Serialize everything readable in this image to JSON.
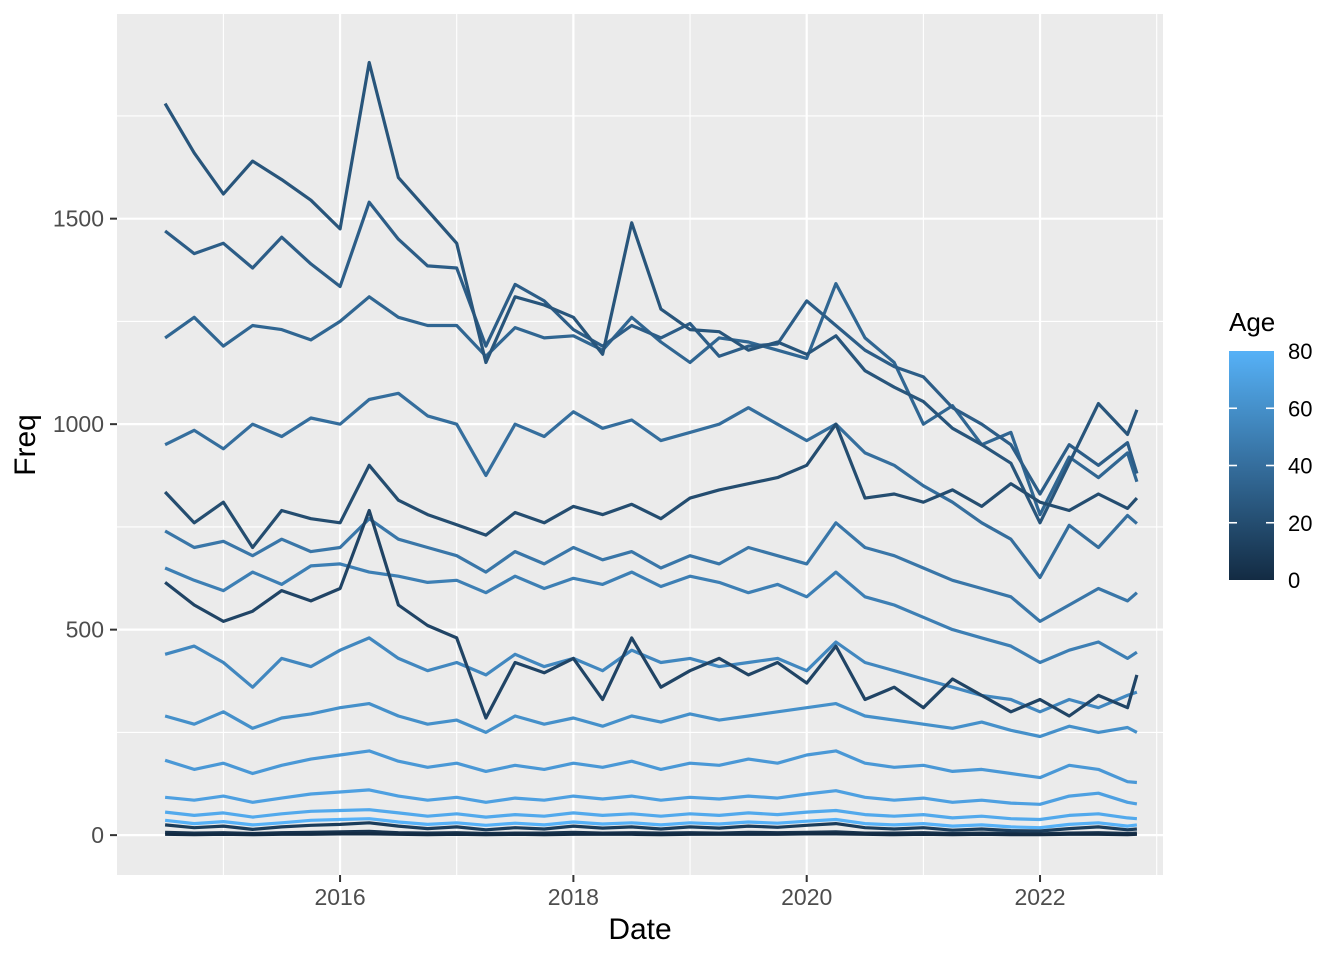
{
  "figure": {
    "background": "#FFFFFF",
    "panel_background": "#EBEBEB",
    "grid_color": "#FFFFFF",
    "axis_text_color": "#4D4D4D",
    "tick_mark_color": "#333333"
  },
  "chart_data": {
    "type": "line",
    "title": "",
    "xlabel": "Date",
    "ylabel": "Freq",
    "grid": true,
    "xlim": [
      2014.088,
      2023.054
    ],
    "ylim": [
      -97,
      1998
    ],
    "x_ticks": [
      2016,
      2018,
      2020,
      2022
    ],
    "x_minor_ticks": [
      2015,
      2017,
      2019,
      2021,
      2023
    ],
    "y_ticks": [
      0,
      500,
      1000,
      1500
    ],
    "y_minor_ticks": [
      250,
      750,
      1250,
      1750
    ],
    "line_width": 3.2,
    "x": [
      2014.5,
      2014.75,
      2015.0,
      2015.25,
      2015.5,
      2015.75,
      2016.0,
      2016.25,
      2016.5,
      2016.75,
      2017.0,
      2017.25,
      2017.5,
      2017.75,
      2018.0,
      2018.25,
      2018.5,
      2018.75,
      2019.0,
      2019.25,
      2019.5,
      2019.75,
      2020.0,
      2020.25,
      2020.5,
      2020.75,
      2021.0,
      2021.25,
      2021.5,
      2021.75,
      2022.0,
      2022.25,
      2022.5,
      2022.75,
      2022.83
    ],
    "series": [
      {
        "name": "0",
        "age": 0,
        "color": "#132B43",
        "values": [
          2,
          1,
          2,
          1,
          2,
          2,
          3,
          3,
          2,
          1,
          2,
          1,
          2,
          1,
          2,
          2,
          2,
          1,
          2,
          2,
          2,
          2,
          3,
          3,
          2,
          1,
          2,
          1,
          2,
          1,
          1,
          2,
          2,
          1,
          2
        ]
      },
      {
        "name": "5",
        "age": 5,
        "color": "#17334E",
        "values": [
          7,
          5,
          6,
          4,
          6,
          7,
          8,
          9,
          6,
          5,
          6,
          4,
          5,
          5,
          7,
          5,
          6,
          5,
          6,
          5,
          7,
          6,
          7,
          8,
          5,
          5,
          6,
          4,
          5,
          4,
          3,
          5,
          6,
          4,
          5
        ]
      },
      {
        "name": "10",
        "age": 10,
        "color": "#1B3C5A",
        "values": [
          25,
          18,
          22,
          14,
          20,
          24,
          26,
          30,
          22,
          16,
          20,
          13,
          18,
          15,
          22,
          17,
          20,
          15,
          20,
          17,
          22,
          19,
          24,
          28,
          18,
          15,
          18,
          12,
          15,
          11,
          10,
          16,
          20,
          13,
          15
        ]
      },
      {
        "name": "15",
        "age": 15,
        "color": "#204465",
        "values": [
          615,
          560,
          520,
          545,
          595,
          570,
          600,
          790,
          560,
          510,
          480,
          285,
          420,
          395,
          430,
          330,
          480,
          360,
          400,
          430,
          390,
          420,
          370,
          460,
          330,
          360,
          310,
          380,
          340,
          300,
          330,
          290,
          340,
          310,
          390
        ]
      },
      {
        "name": "20",
        "age": 20,
        "color": "#244D70",
        "values": [
          835,
          760,
          810,
          700,
          790,
          770,
          760,
          900,
          815,
          780,
          755,
          730,
          785,
          760,
          800,
          780,
          805,
          770,
          820,
          840,
          855,
          870,
          900,
          1000,
          820,
          830,
          810,
          840,
          800,
          855,
          810,
          790,
          830,
          795,
          820
        ]
      },
      {
        "name": "25",
        "age": 25,
        "color": "#28557B",
        "values": [
          1780,
          1660,
          1560,
          1640,
          1595,
          1545,
          1475,
          1880,
          1600,
          1520,
          1440,
          1150,
          1310,
          1290,
          1260,
          1170,
          1490,
          1280,
          1230,
          1225,
          1180,
          1200,
          1170,
          1215,
          1130,
          1090,
          1055,
          990,
          950,
          905,
          760,
          905,
          1050,
          975,
          1035
        ]
      },
      {
        "name": "30",
        "age": 30,
        "color": "#2C5D87",
        "values": [
          1470,
          1415,
          1440,
          1380,
          1455,
          1390,
          1335,
          1540,
          1450,
          1385,
          1380,
          1190,
          1340,
          1300,
          1230,
          1190,
          1240,
          1210,
          1245,
          1165,
          1190,
          1195,
          1300,
          1240,
          1180,
          1140,
          1115,
          1040,
          1000,
          950,
          830,
          950,
          900,
          955,
          880
        ]
      },
      {
        "name": "35",
        "age": 35,
        "color": "#306692",
        "values": [
          1210,
          1260,
          1190,
          1240,
          1230,
          1205,
          1250,
          1310,
          1260,
          1240,
          1240,
          1165,
          1235,
          1210,
          1215,
          1180,
          1260,
          1200,
          1150,
          1210,
          1200,
          1180,
          1160,
          1342,
          1210,
          1150,
          1000,
          1045,
          950,
          980,
          780,
          920,
          870,
          930,
          860
        ]
      },
      {
        "name": "40",
        "age": 40,
        "color": "#356E9D",
        "values": [
          950,
          985,
          940,
          1000,
          970,
          1015,
          1000,
          1060,
          1075,
          1020,
          1000,
          875,
          1000,
          970,
          1030,
          990,
          1010,
          960,
          980,
          1000,
          1040,
          1000,
          960,
          1000,
          930,
          900,
          850,
          810,
          760,
          720,
          627,
          754,
          700,
          778,
          758
        ]
      },
      {
        "name": "45",
        "age": 45,
        "color": "#3976A8",
        "values": [
          740,
          700,
          715,
          680,
          720,
          690,
          700,
          770,
          720,
          700,
          680,
          640,
          690,
          660,
          700,
          670,
          690,
          650,
          680,
          660,
          700,
          680,
          660,
          760,
          700,
          680,
          650,
          620,
          600,
          580,
          520,
          560,
          600,
          570,
          590
        ]
      },
      {
        "name": "50",
        "age": 50,
        "color": "#3D7FB4",
        "values": [
          650,
          620,
          595,
          640,
          610,
          655,
          660,
          640,
          630,
          615,
          620,
          590,
          630,
          600,
          625,
          610,
          640,
          605,
          630,
          615,
          590,
          610,
          580,
          640,
          580,
          560,
          530,
          500,
          480,
          460,
          420,
          450,
          470,
          430,
          445
        ]
      },
      {
        "name": "55",
        "age": 55,
        "color": "#4187BF",
        "values": [
          440,
          460,
          420,
          360,
          430,
          410,
          450,
          480,
          430,
          400,
          420,
          390,
          440,
          410,
          430,
          400,
          450,
          420,
          430,
          410,
          420,
          430,
          400,
          470,
          420,
          400,
          380,
          360,
          340,
          330,
          300,
          330,
          310,
          340,
          348
        ]
      },
      {
        "name": "60",
        "age": 60,
        "color": "#4590CA",
        "values": [
          290,
          270,
          300,
          260,
          285,
          295,
          310,
          320,
          290,
          270,
          280,
          250,
          290,
          270,
          285,
          265,
          290,
          275,
          295,
          280,
          290,
          300,
          310,
          320,
          290,
          280,
          270,
          260,
          275,
          255,
          240,
          265,
          250,
          262,
          250
        ]
      },
      {
        "name": "65",
        "age": 65,
        "color": "#4A98D6",
        "values": [
          182,
          160,
          175,
          150,
          170,
          185,
          195,
          205,
          180,
          165,
          175,
          155,
          170,
          160,
          175,
          165,
          180,
          160,
          175,
          170,
          185,
          175,
          195,
          205,
          175,
          165,
          170,
          155,
          160,
          150,
          140,
          170,
          160,
          130,
          128
        ]
      },
      {
        "name": "70",
        "age": 70,
        "color": "#4EA0E1",
        "values": [
          92,
          85,
          95,
          80,
          90,
          100,
          105,
          110,
          95,
          85,
          92,
          80,
          90,
          85,
          95,
          88,
          95,
          85,
          92,
          88,
          95,
          90,
          100,
          108,
          92,
          85,
          90,
          80,
          85,
          78,
          75,
          95,
          102,
          80,
          76
        ]
      },
      {
        "name": "75",
        "age": 75,
        "color": "#52A9EC",
        "values": [
          56,
          48,
          54,
          44,
          52,
          58,
          60,
          62,
          54,
          46,
          52,
          44,
          50,
          46,
          54,
          48,
          52,
          46,
          52,
          48,
          54,
          50,
          56,
          60,
          50,
          46,
          50,
          42,
          46,
          40,
          38,
          48,
          52,
          42,
          40
        ]
      },
      {
        "name": "80",
        "age": 80,
        "color": "#56B1F7",
        "values": [
          36,
          28,
          33,
          25,
          30,
          36,
          38,
          40,
          32,
          26,
          30,
          24,
          29,
          25,
          32,
          27,
          30,
          25,
          30,
          27,
          32,
          29,
          34,
          38,
          28,
          25,
          28,
          22,
          25,
          20,
          18,
          26,
          30,
          22,
          25
        ]
      }
    ],
    "legend": {
      "title": "Age",
      "position": "right",
      "style": "colorbar",
      "ticks": [
        0,
        20,
        40,
        60,
        80
      ],
      "gradient_low": "#132B43",
      "gradient_high": "#56B1F7",
      "gradient_stops": [
        "#56B1F7",
        "#4590CA",
        "#356E9D",
        "#244D70",
        "#132B43"
      ]
    }
  }
}
